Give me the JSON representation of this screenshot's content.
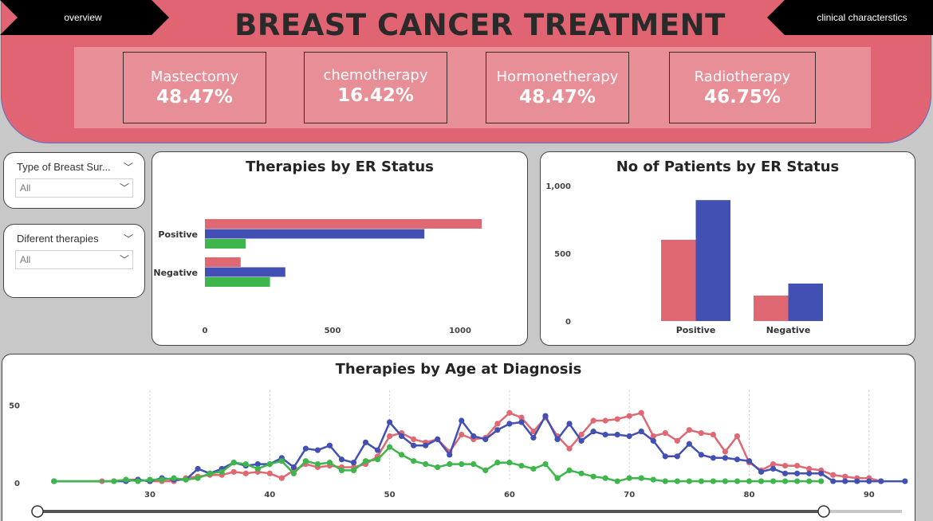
{
  "header": {
    "title": "BREAST CANCER TREATMENT",
    "nav_left": "overview",
    "nav_right": "clinical characterstics",
    "colors": {
      "banner": "#e06471",
      "strip": "#e88e96"
    }
  },
  "kpis": [
    {
      "label": "Mastectomy",
      "value": "48.47%"
    },
    {
      "label": "chemotherapy",
      "value": "16.42%"
    },
    {
      "label": "Hormonetherapy",
      "value": "48.47%"
    },
    {
      "label": "Radiotherapy",
      "value": "46.75%"
    }
  ],
  "slicers": [
    {
      "title": "Type of Breast Sur...",
      "value": "All"
    },
    {
      "title": "Diferent therapies",
      "value": "All"
    }
  ],
  "colors": {
    "red": "#df6873",
    "blue": "#4150b2",
    "green": "#3db64c"
  },
  "chart_data": [
    {
      "type": "bar",
      "orientation": "horizontal",
      "title": "Therapies by ER Status",
      "categories": [
        "Positive",
        "Negative"
      ],
      "series": [
        {
          "values": [
            1085,
            140
          ]
        },
        {
          "values": [
            860,
            315
          ]
        },
        {
          "values": [
            160,
            255
          ]
        }
      ],
      "xlim": [
        0,
        1150
      ],
      "xticks": [
        "0",
        "500",
        "1000"
      ],
      "grid": false
    },
    {
      "type": "bar",
      "title": "No of Patients by ER Status",
      "categories": [
        "Positive",
        "Negative"
      ],
      "series": [
        {
          "values": [
            600,
            188
          ]
        },
        {
          "values": [
            893,
            277
          ]
        }
      ],
      "ylim": [
        0,
        1000
      ],
      "yticks": [
        "0",
        "500",
        "1,000"
      ],
      "grid": false
    },
    {
      "type": "line",
      "title": "Therapies by Age at Diagnosis",
      "xlim": [
        23,
        93
      ],
      "ylim": [
        0,
        60
      ],
      "xticks": [
        "30",
        "40",
        "50",
        "60",
        "70",
        "80",
        "90"
      ],
      "yticks": [
        "0",
        "50"
      ],
      "grid": true,
      "series": [
        {
          "points": [
            [
              22,
              1
            ],
            [
              26,
              1
            ],
            [
              27,
              1
            ],
            [
              28,
              2
            ],
            [
              29,
              2
            ],
            [
              30,
              1
            ],
            [
              31,
              1
            ],
            [
              32,
              1
            ],
            [
              33,
              3
            ],
            [
              34,
              4
            ],
            [
              35,
              5
            ],
            [
              36,
              5
            ],
            [
              37,
              7
            ],
            [
              38,
              6
            ],
            [
              39,
              7
            ],
            [
              40,
              6
            ],
            [
              41,
              3
            ],
            [
              42,
              8
            ],
            [
              43,
              12
            ],
            [
              44,
              10
            ],
            [
              45,
              11
            ],
            [
              46,
              10
            ],
            [
              47,
              10
            ],
            [
              48,
              12
            ],
            [
              49,
              17
            ],
            [
              50,
              30
            ],
            [
              51,
              32
            ],
            [
              52,
              28
            ],
            [
              53,
              26
            ],
            [
              54,
              28
            ],
            [
              55,
              20
            ],
            [
              56,
              31
            ],
            [
              57,
              28
            ],
            [
              58,
              29
            ],
            [
              59,
              38
            ],
            [
              60,
              45
            ],
            [
              61,
              42
            ],
            [
              62,
              33
            ],
            [
              63,
              42
            ],
            [
              64,
              30
            ],
            [
              65,
              22
            ],
            [
              66,
              31
            ],
            [
              67,
              40
            ],
            [
              68,
              40
            ],
            [
              69,
              41
            ],
            [
              70,
              43
            ],
            [
              71,
              45
            ],
            [
              72,
              30
            ],
            [
              73,
              32
            ],
            [
              74,
              27
            ],
            [
              75,
              34
            ],
            [
              76,
              32
            ],
            [
              77,
              31
            ],
            [
              78,
              20
            ],
            [
              79,
              30
            ],
            [
              80,
              13
            ],
            [
              81,
              8
            ],
            [
              82,
              12
            ],
            [
              83,
              11
            ],
            [
              84,
              11
            ],
            [
              85,
              9
            ],
            [
              86,
              8
            ],
            [
              87,
              5
            ],
            [
              88,
              4
            ],
            [
              89,
              3
            ],
            [
              90,
              3
            ],
            [
              91,
              1
            ]
          ]
        },
        {
          "points": [
            [
              22,
              1
            ],
            [
              28,
              1
            ],
            [
              29,
              2
            ],
            [
              30,
              1
            ],
            [
              31,
              3
            ],
            [
              32,
              2
            ],
            [
              33,
              2
            ],
            [
              34,
              9
            ],
            [
              35,
              6
            ],
            [
              36,
              9
            ],
            [
              37,
              13
            ],
            [
              38,
              11
            ],
            [
              39,
              12
            ],
            [
              40,
              12
            ],
            [
              41,
              16
            ],
            [
              42,
              10
            ],
            [
              43,
              22
            ],
            [
              44,
              21
            ],
            [
              45,
              24
            ],
            [
              46,
              15
            ],
            [
              47,
              13
            ],
            [
              48,
              26
            ],
            [
              49,
              21
            ],
            [
              50,
              39
            ],
            [
              51,
              30
            ],
            [
              52,
              24
            ],
            [
              53,
              24
            ],
            [
              54,
              28
            ],
            [
              55,
              18
            ],
            [
              56,
              40
            ],
            [
              57,
              30
            ],
            [
              58,
              28
            ],
            [
              59,
              34
            ],
            [
              60,
              38
            ],
            [
              61,
              39
            ],
            [
              62,
              29
            ],
            [
              63,
              43
            ],
            [
              64,
              28
            ],
            [
              65,
              38
            ],
            [
              66,
              27
            ],
            [
              67,
              33
            ],
            [
              68,
              31
            ],
            [
              69,
              31
            ],
            [
              70,
              30
            ],
            [
              71,
              33
            ],
            [
              72,
              27
            ],
            [
              73,
              17
            ],
            [
              74,
              17
            ],
            [
              75,
              25
            ],
            [
              76,
              18
            ],
            [
              77,
              16
            ],
            [
              78,
              16
            ],
            [
              79,
              15
            ],
            [
              80,
              14
            ],
            [
              81,
              7
            ],
            [
              82,
              9
            ],
            [
              83,
              6
            ],
            [
              84,
              6
            ],
            [
              85,
              6
            ],
            [
              86,
              6
            ],
            [
              87,
              1
            ],
            [
              88,
              1
            ],
            [
              89,
              1
            ],
            [
              90,
              1
            ],
            [
              91,
              1
            ],
            [
              93,
              1
            ]
          ]
        },
        {
          "points": [
            [
              22,
              1
            ],
            [
              27,
              1
            ],
            [
              28,
              2
            ],
            [
              29,
              1
            ],
            [
              30,
              2
            ],
            [
              31,
              2
            ],
            [
              32,
              3
            ],
            [
              33,
              2
            ],
            [
              34,
              3
            ],
            [
              35,
              6
            ],
            [
              36,
              7
            ],
            [
              37,
              13
            ],
            [
              38,
              12
            ],
            [
              39,
              9
            ],
            [
              40,
              12
            ],
            [
              41,
              14
            ],
            [
              42,
              6
            ],
            [
              43,
              14
            ],
            [
              44,
              12
            ],
            [
              45,
              13
            ],
            [
              46,
              8
            ],
            [
              47,
              8
            ],
            [
              48,
              14
            ],
            [
              49,
              15
            ],
            [
              50,
              23
            ],
            [
              51,
              18
            ],
            [
              52,
              14
            ],
            [
              53,
              12
            ],
            [
              54,
              10
            ],
            [
              55,
              12
            ],
            [
              56,
              12
            ],
            [
              57,
              12
            ],
            [
              58,
              8
            ],
            [
              59,
              13
            ],
            [
              60,
              13
            ],
            [
              61,
              11
            ],
            [
              62,
              9
            ],
            [
              63,
              12
            ],
            [
              64,
              3
            ],
            [
              65,
              8
            ],
            [
              66,
              6
            ],
            [
              67,
              4
            ],
            [
              68,
              3
            ],
            [
              69,
              1
            ],
            [
              70,
              3
            ],
            [
              71,
              3
            ],
            [
              72,
              2
            ],
            [
              73,
              1
            ],
            [
              74,
              1
            ],
            [
              75,
              1
            ],
            [
              76,
              1
            ],
            [
              77,
              1
            ],
            [
              78,
              1
            ],
            [
              79,
              1
            ],
            [
              80,
              1
            ],
            [
              81,
              1
            ],
            [
              82,
              1
            ],
            [
              83,
              1
            ],
            [
              84,
              1
            ],
            [
              85,
              1
            ],
            [
              86,
              1
            ]
          ]
        }
      ]
    }
  ]
}
